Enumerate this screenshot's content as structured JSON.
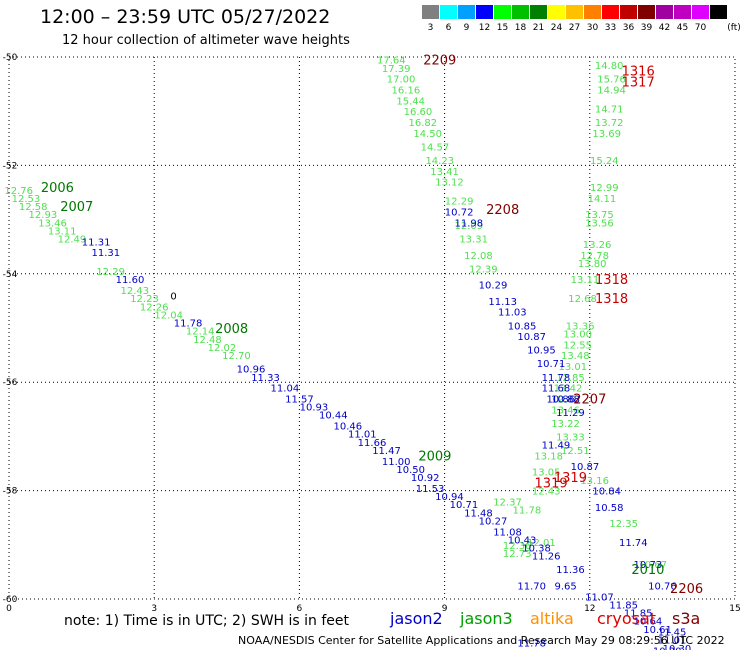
{
  "header": {
    "title": "12:00 – 23:59 UTC 05/27/2022",
    "subtitle": "12 hour collection of altimeter wave heights"
  },
  "legend": {
    "unit": "(ft)",
    "bins": [
      {
        "label": "3",
        "color": "#808080"
      },
      {
        "label": "6",
        "color": "#00ffff"
      },
      {
        "label": "9",
        "color": "#00a0ff"
      },
      {
        "label": "12",
        "color": "#0000ff"
      },
      {
        "label": "15",
        "color": "#00ff00"
      },
      {
        "label": "18",
        "color": "#00c000"
      },
      {
        "label": "21",
        "color": "#008000"
      },
      {
        "label": "24",
        "color": "#ffff00"
      },
      {
        "label": "27",
        "color": "#ffc000"
      },
      {
        "label": "30",
        "color": "#ff8000"
      },
      {
        "label": "33",
        "color": "#ff0000"
      },
      {
        "label": "36",
        "color": "#c00000"
      },
      {
        "label": "39",
        "color": "#800000"
      },
      {
        "label": "42",
        "color": "#a000a0"
      },
      {
        "label": "45",
        "color": "#c000c0"
      },
      {
        "label": "70",
        "color": "#e000ff"
      },
      {
        "label": "",
        "color": "#000000"
      }
    ]
  },
  "chart_data": {
    "type": "scatter",
    "xlim": [
      0,
      15
    ],
    "ylim": [
      -60,
      -50
    ],
    "x_ticks": [
      "0",
      "3",
      "6",
      "9",
      "12",
      "15"
    ],
    "y_ticks": [
      "-50",
      "-52",
      "-54",
      "-56",
      "-58",
      "-60"
    ],
    "grid": true,
    "colors": {
      "jason2": "#0000c8",
      "jason3": "#50e050",
      "jason3_time": "#007800",
      "cryosat": "#cc0000",
      "s3a": "#800000"
    },
    "times": [
      {
        "text": "2006",
        "x": 1.0,
        "y": -52.4,
        "sat": "jason3"
      },
      {
        "text": "2007",
        "x": 1.4,
        "y": -52.75,
        "sat": "jason3"
      },
      {
        "text": "2008",
        "x": 4.6,
        "y": -55.0,
        "sat": "jason3"
      },
      {
        "text": "2009",
        "x": 8.8,
        "y": -57.35,
        "sat": "jason3"
      },
      {
        "text": "2010",
        "x": 13.2,
        "y": -59.45,
        "sat": "jason3"
      },
      {
        "text": "2209",
        "x": 8.9,
        "y": -50.05,
        "sat": "s3a"
      },
      {
        "text": "2208",
        "x": 10.2,
        "y": -52.8,
        "sat": "s3a"
      },
      {
        "text": "2207",
        "x": 12.0,
        "y": -56.3,
        "sat": "s3a"
      },
      {
        "text": "2206",
        "x": 14.0,
        "y": -59.8,
        "sat": "s3a"
      },
      {
        "text": "1316",
        "x": 13.0,
        "y": -50.25,
        "sat": "cryosat"
      },
      {
        "text": "1317",
        "x": 13.0,
        "y": -50.45,
        "sat": "cryosat"
      },
      {
        "text": "1318",
        "x": 12.45,
        "y": -54.1,
        "sat": "cryosat"
      },
      {
        "text": "1318",
        "x": 12.45,
        "y": -54.45,
        "sat": "cryosat"
      },
      {
        "text": "1319",
        "x": 11.6,
        "y": -57.75,
        "sat": "cryosat"
      },
      {
        "text": "1319",
        "x": 11.2,
        "y": -57.85,
        "sat": "cryosat"
      }
    ],
    "series": [
      {
        "name": "jason3",
        "color": "#50e050",
        "points": [
          {
            "x": 0.2,
            "y": -52.45,
            "v": "12.76"
          },
          {
            "x": 0.35,
            "y": -52.6,
            "v": "12.53"
          },
          {
            "x": 0.5,
            "y": -52.75,
            "v": "12.58"
          },
          {
            "x": 0.7,
            "y": -52.9,
            "v": "12.93"
          },
          {
            "x": 0.9,
            "y": -53.05,
            "v": "13.46"
          },
          {
            "x": 1.1,
            "y": -53.2,
            "v": "13.11"
          },
          {
            "x": 1.3,
            "y": -53.35,
            "v": "12.49"
          },
          {
            "x": 2.1,
            "y": -53.95,
            "v": "12.29"
          },
          {
            "x": 2.6,
            "y": -54.3,
            "v": "12.43"
          },
          {
            "x": 2.8,
            "y": -54.45,
            "v": "12.23"
          },
          {
            "x": 3.0,
            "y": -54.6,
            "v": "12.26"
          },
          {
            "x": 3.3,
            "y": -54.75,
            "v": "12.04"
          },
          {
            "x": 3.95,
            "y": -55.05,
            "v": "12.14"
          },
          {
            "x": 4.1,
            "y": -55.2,
            "v": "12.48"
          },
          {
            "x": 4.4,
            "y": -55.35,
            "v": "12.02"
          },
          {
            "x": 4.7,
            "y": -55.5,
            "v": "12.70"
          },
          {
            "x": 10.3,
            "y": -58.2,
            "v": "12.37"
          },
          {
            "x": 10.7,
            "y": -58.35,
            "v": "11.78"
          },
          {
            "x": 10.5,
            "y": -59.0,
            "v": "12.36"
          },
          {
            "x": 10.5,
            "y": -59.15,
            "v": "12.73"
          },
          {
            "x": 11.0,
            "y": -58.95,
            "v": "12.01"
          },
          {
            "x": 7.9,
            "y": -50.05,
            "v": "17.64"
          },
          {
            "x": 8.0,
            "y": -50.2,
            "v": "17.39"
          },
          {
            "x": 8.1,
            "y": -50.4,
            "v": "17.00"
          },
          {
            "x": 8.2,
            "y": -50.6,
            "v": "16.16"
          },
          {
            "x": 8.3,
            "y": -50.8,
            "v": "15.44"
          },
          {
            "x": 8.45,
            "y": -51.0,
            "v": "16.60"
          },
          {
            "x": 8.55,
            "y": -51.2,
            "v": "16.82"
          },
          {
            "x": 8.65,
            "y": -51.4,
            "v": "14.50"
          },
          {
            "x": 8.8,
            "y": -51.65,
            "v": "14.57"
          },
          {
            "x": 8.9,
            "y": -51.9,
            "v": "14.23"
          },
          {
            "x": 9.0,
            "y": -52.1,
            "v": "13.41"
          },
          {
            "x": 9.1,
            "y": -52.3,
            "v": "13.12"
          },
          {
            "x": 9.3,
            "y": -52.65,
            "v": "12.29"
          },
          {
            "x": 9.5,
            "y": -53.1,
            "v": "12.09"
          },
          {
            "x": 9.6,
            "y": -53.35,
            "v": "13.31"
          },
          {
            "x": 9.7,
            "y": -53.65,
            "v": "12.08"
          },
          {
            "x": 9.8,
            "y": -53.9,
            "v": "12.39"
          },
          {
            "x": 12.4,
            "y": -50.15,
            "v": "14.80"
          },
          {
            "x": 12.45,
            "y": -50.4,
            "v": "15.76"
          },
          {
            "x": 12.45,
            "y": -50.6,
            "v": "14.94"
          },
          {
            "x": 12.4,
            "y": -50.95,
            "v": "14.71"
          },
          {
            "x": 12.4,
            "y": -51.2,
            "v": "13.72"
          },
          {
            "x": 12.35,
            "y": -51.4,
            "v": "13.69"
          },
          {
            "x": 12.3,
            "y": -51.9,
            "v": "15.24"
          },
          {
            "x": 12.3,
            "y": -52.4,
            "v": "12.99"
          },
          {
            "x": 12.25,
            "y": -52.6,
            "v": "14.11"
          },
          {
            "x": 12.2,
            "y": -52.9,
            "v": "13.75"
          },
          {
            "x": 12.2,
            "y": -53.05,
            "v": "13.56"
          },
          {
            "x": 12.15,
            "y": -53.45,
            "v": "13.26"
          },
          {
            "x": 12.1,
            "y": -53.65,
            "v": "12.78"
          },
          {
            "x": 12.05,
            "y": -53.8,
            "v": "13.80"
          },
          {
            "x": 11.9,
            "y": -54.1,
            "v": "13.11"
          },
          {
            "x": 11.85,
            "y": -54.45,
            "v": "12.68"
          },
          {
            "x": 11.8,
            "y": -54.95,
            "v": "13.36"
          },
          {
            "x": 11.75,
            "y": -55.1,
            "v": "13.00"
          },
          {
            "x": 11.75,
            "y": -55.3,
            "v": "12.55"
          },
          {
            "x": 11.7,
            "y": -55.5,
            "v": "13.48"
          },
          {
            "x": 11.65,
            "y": -55.7,
            "v": "13.01"
          },
          {
            "x": 11.6,
            "y": -55.9,
            "v": "12.85"
          },
          {
            "x": 11.55,
            "y": -56.1,
            "v": "13.42"
          },
          {
            "x": 11.5,
            "y": -56.3,
            "v": "12.88"
          },
          {
            "x": 11.5,
            "y": -56.5,
            "v": "13.46"
          },
          {
            "x": 11.5,
            "y": -56.75,
            "v": "13.22"
          },
          {
            "x": 11.6,
            "y": -57.0,
            "v": "13.33"
          },
          {
            "x": 11.7,
            "y": -57.25,
            "v": "12.51"
          },
          {
            "x": 11.15,
            "y": -57.35,
            "v": "13.18"
          },
          {
            "x": 11.1,
            "y": -57.65,
            "v": "13.05"
          },
          {
            "x": 12.1,
            "y": -57.8,
            "v": "13.16"
          },
          {
            "x": 11.1,
            "y": -58.0,
            "v": "12.43"
          },
          {
            "x": 12.7,
            "y": -58.6,
            "v": "12.35"
          },
          {
            "x": 13.3,
            "y": -59.35,
            "v": "10.67"
          }
        ]
      },
      {
        "name": "jason2",
        "color": "#0000c8",
        "points": [
          {
            "x": 1.8,
            "y": -53.4,
            "v": "11.31"
          },
          {
            "x": 2.0,
            "y": -53.6,
            "v": "11.31"
          },
          {
            "x": 2.5,
            "y": -54.1,
            "v": "11.60"
          },
          {
            "x": 3.7,
            "y": -54.9,
            "v": "11.78"
          },
          {
            "x": 5.0,
            "y": -55.75,
            "v": "10.96"
          },
          {
            "x": 5.3,
            "y": -55.9,
            "v": "11.33"
          },
          {
            "x": 5.7,
            "y": -56.1,
            "v": "11.04"
          },
          {
            "x": 6.0,
            "y": -56.3,
            "v": "11.57"
          },
          {
            "x": 6.3,
            "y": -56.45,
            "v": "10.93"
          },
          {
            "x": 6.7,
            "y": -56.6,
            "v": "10.44"
          },
          {
            "x": 7.0,
            "y": -56.8,
            "v": "10.46"
          },
          {
            "x": 7.3,
            "y": -56.95,
            "v": "11.01"
          },
          {
            "x": 7.5,
            "y": -57.1,
            "v": "11.66"
          },
          {
            "x": 7.8,
            "y": -57.25,
            "v": "11.47"
          },
          {
            "x": 8.0,
            "y": -57.45,
            "v": "11.00"
          },
          {
            "x": 8.3,
            "y": -57.6,
            "v": "10.50"
          },
          {
            "x": 8.6,
            "y": -57.75,
            "v": "10.92"
          },
          {
            "x": 8.7,
            "y": -57.95,
            "v": "11.53"
          },
          {
            "x": 9.1,
            "y": -58.1,
            "v": "10.94"
          },
          {
            "x": 9.4,
            "y": -58.25,
            "v": "10.71"
          },
          {
            "x": 9.7,
            "y": -58.4,
            "v": "11.48"
          },
          {
            "x": 10.0,
            "y": -58.55,
            "v": "10.27"
          },
          {
            "x": 10.3,
            "y": -58.75,
            "v": "11.08"
          },
          {
            "x": 10.6,
            "y": -58.9,
            "v": "10.43"
          },
          {
            "x": 10.9,
            "y": -59.05,
            "v": "10.38"
          },
          {
            "x": 11.1,
            "y": -59.2,
            "v": "11.26"
          },
          {
            "x": 11.6,
            "y": -59.45,
            "v": "11.36"
          },
          {
            "x": 11.5,
            "y": -59.75,
            "v": "9.65"
          },
          {
            "x": 12.2,
            "y": -59.95,
            "v": "11.07"
          },
          {
            "x": 12.7,
            "y": -60.1,
            "v": "11.85"
          },
          {
            "x": 13.0,
            "y": -60.25,
            "v": "11.85"
          },
          {
            "x": 13.2,
            "y": -60.4,
            "v": "10.64"
          },
          {
            "x": 13.4,
            "y": -60.55,
            "v": "10.61"
          },
          {
            "x": 13.7,
            "y": -60.6,
            "v": "11.45"
          },
          {
            "x": 13.7,
            "y": -60.75,
            "v": "11.01"
          },
          {
            "x": 13.8,
            "y": -60.9,
            "v": "10.30"
          },
          {
            "x": 13.6,
            "y": -60.95,
            "v": "10.30"
          },
          {
            "x": 9.3,
            "y": -52.85,
            "v": "10.72"
          },
          {
            "x": 9.5,
            "y": -53.05,
            "v": "11.98"
          },
          {
            "x": 10.0,
            "y": -54.2,
            "v": "10.29"
          },
          {
            "x": 10.2,
            "y": -54.5,
            "v": "11.13"
          },
          {
            "x": 10.4,
            "y": -54.7,
            "v": "11.03"
          },
          {
            "x": 10.6,
            "y": -54.95,
            "v": "10.85"
          },
          {
            "x": 10.8,
            "y": -55.15,
            "v": "10.87"
          },
          {
            "x": 11.0,
            "y": -55.4,
            "v": "10.95"
          },
          {
            "x": 11.2,
            "y": -55.65,
            "v": "10.71"
          },
          {
            "x": 11.3,
            "y": -55.9,
            "v": "11.78"
          },
          {
            "x": 11.3,
            "y": -56.1,
            "v": "11.68"
          },
          {
            "x": 11.4,
            "y": -56.3,
            "v": "10.86"
          },
          {
            "x": 11.5,
            "y": -56.3,
            "v": "10.88"
          },
          {
            "x": 11.6,
            "y": -56.55,
            "v": "11.29"
          },
          {
            "x": 11.3,
            "y": -57.15,
            "v": "11.49"
          },
          {
            "x": 11.9,
            "y": -57.55,
            "v": "10.87"
          },
          {
            "x": 12.35,
            "y": -58.0,
            "v": "10.84"
          },
          {
            "x": 12.4,
            "y": -58.3,
            "v": "10.58"
          },
          {
            "x": 12.9,
            "y": -58.95,
            "v": "11.74"
          },
          {
            "x": 13.2,
            "y": -59.35,
            "v": "10.73"
          },
          {
            "x": 13.5,
            "y": -59.75,
            "v": "10.76"
          },
          {
            "x": 10.8,
            "y": -59.75,
            "v": "11.70"
          },
          {
            "x": 10.8,
            "y": -60.8,
            "v": "11.78"
          }
        ]
      },
      {
        "name": "s3a",
        "color": "#000000",
        "points": [
          {
            "x": 3.4,
            "y": -54.4,
            "v": "0"
          }
        ]
      }
    ]
  },
  "footer": {
    "note": "note:  1) Time is in UTC;  2) SWH is in feet",
    "satellites": [
      {
        "label": "jason2",
        "color": "#0000c8"
      },
      {
        "label": "jason3",
        "color": "#00a000"
      },
      {
        "label": "altika",
        "color": "#ff9000"
      },
      {
        "label": "cryosat",
        "color": "#e00000"
      },
      {
        "label": "s3a",
        "color": "#800000"
      }
    ],
    "credit": "NOAA/NESDIS Center for Satellite Applications and Research     May 29 08:29:56 UTC 2022"
  }
}
